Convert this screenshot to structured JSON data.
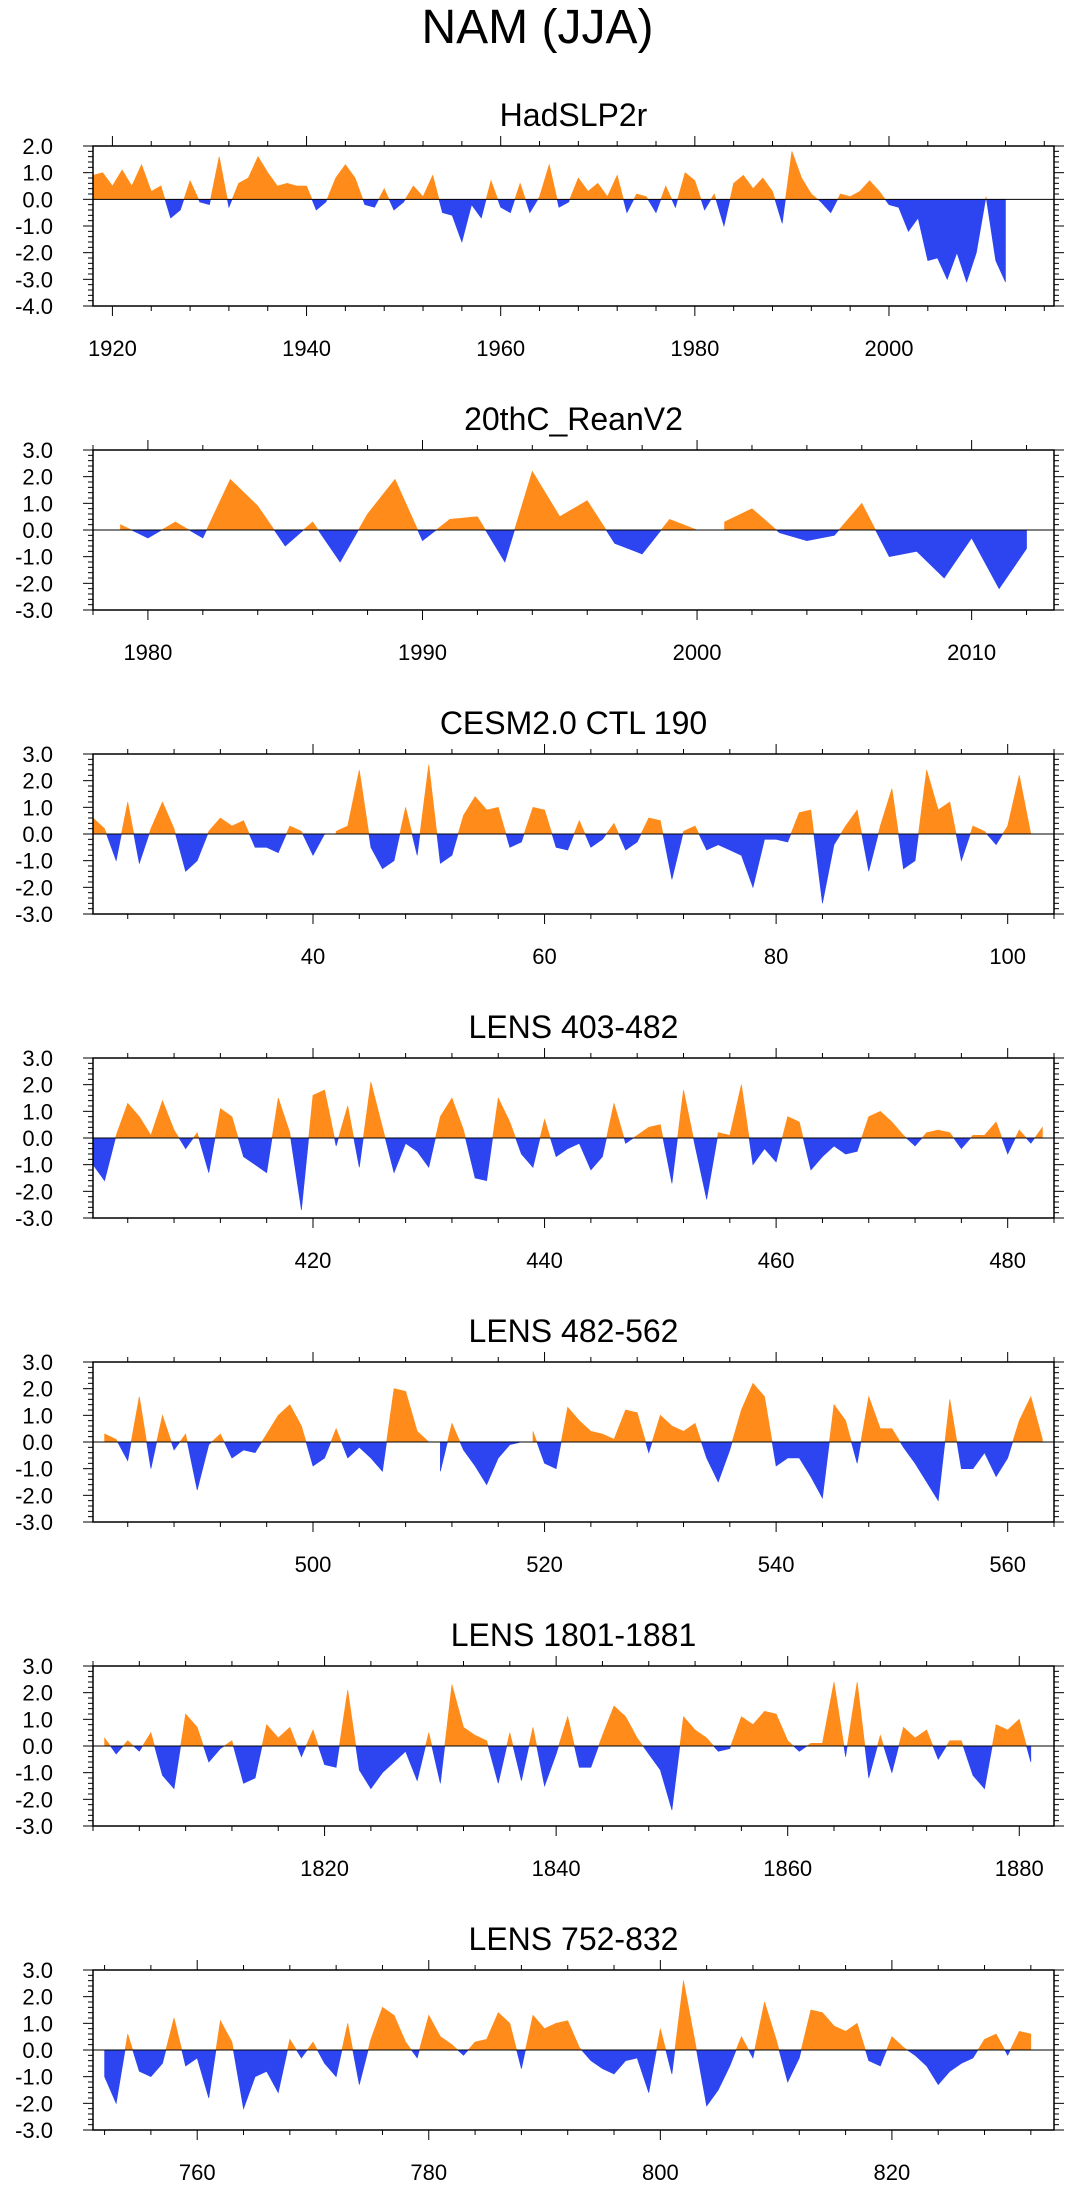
{
  "title": "NAM (JJA)",
  "colors": {
    "positive": "#ff8c1a",
    "negative": "#2d45f0",
    "axis": "#000000",
    "zero_line": "#000000"
  },
  "chart_data": [
    {
      "type": "area",
      "title": "HadSLP2r",
      "xlim": [
        1918,
        2017
      ],
      "ylim": [
        -4.0,
        2.0
      ],
      "yticks": [
        2.0,
        1.0,
        0.0,
        -1.0,
        -2.0,
        -3.0,
        -4.0
      ],
      "ytick_labels": [
        "2.0",
        "1.0",
        "0.0",
        "-1.0",
        "-2.0",
        "-3.0",
        "-4.0"
      ],
      "xticks": [
        1920,
        1940,
        1960,
        1980,
        2000
      ],
      "x_start": 1918,
      "x_step": 1,
      "values": [
        0.9,
        1.0,
        0.5,
        1.1,
        0.5,
        1.3,
        0.3,
        0.5,
        -0.7,
        -0.4,
        0.7,
        -0.1,
        -0.2,
        1.6,
        -0.3,
        0.6,
        0.8,
        1.6,
        1.0,
        0.5,
        0.6,
        0.5,
        0.5,
        -0.4,
        -0.1,
        0.8,
        1.3,
        0.8,
        -0.2,
        -0.3,
        0.4,
        -0.4,
        -0.1,
        0.5,
        0.1,
        0.9,
        -0.5,
        -0.6,
        -1.6,
        -0.2,
        -0.7,
        0.7,
        -0.3,
        -0.5,
        0.6,
        -0.5,
        0.1,
        1.3,
        -0.3,
        -0.1,
        0.8,
        0.3,
        0.6,
        0.1,
        0.9,
        -0.5,
        0.2,
        0.1,
        -0.5,
        0.5,
        -0.3,
        1.0,
        0.7,
        -0.4,
        0.2,
        -1.0,
        0.6,
        0.9,
        0.4,
        0.8,
        0.3,
        -0.9,
        1.8,
        0.8,
        0.2,
        -0.1,
        -0.5,
        0.2,
        0.1,
        0.3,
        0.7,
        0.3,
        -0.2,
        -0.3,
        -1.2,
        -0.7,
        -2.3,
        -2.2,
        -3.0,
        -2.0,
        -3.1,
        -2.0,
        0.1,
        -2.3,
        -3.1
      ]
    },
    {
      "type": "area",
      "title": "20thC_ReanV2",
      "xlim": [
        1978,
        2013
      ],
      "ylim": [
        -3.0,
        3.0
      ],
      "yticks": [
        3.0,
        2.0,
        1.0,
        0.0,
        -1.0,
        -2.0,
        -3.0
      ],
      "ytick_labels": [
        "3.0",
        "2.0",
        "1.0",
        "0.0",
        "-1.0",
        "-2.0",
        "-3.0"
      ],
      "xticks": [
        1980,
        1990,
        2000,
        2010
      ],
      "x_start": 1979,
      "x_step": 1,
      "values": [
        0.2,
        -0.3,
        0.3,
        -0.3,
        1.9,
        0.9,
        -0.6,
        0.3,
        -1.2,
        0.6,
        1.9,
        -0.4,
        0.4,
        0.5,
        -1.2,
        2.2,
        0.5,
        1.1,
        -0.5,
        -0.9,
        0.4,
        0.0,
        0.3,
        0.8,
        -0.1,
        -0.4,
        -0.2,
        1.0,
        -1.0,
        -0.8,
        -1.8,
        -0.3,
        -2.2,
        -0.7
      ]
    },
    {
      "type": "area",
      "title": "CESM2.0 CTL 190",
      "xlim": [
        21,
        104
      ],
      "ylim": [
        -3.0,
        3.0
      ],
      "yticks": [
        3.0,
        2.0,
        1.0,
        0.0,
        -1.0,
        -2.0,
        -3.0
      ],
      "ytick_labels": [
        "3.0",
        "2.0",
        "1.0",
        "0.0",
        "-1.0",
        "-2.0",
        "-3.0"
      ],
      "xticks": [
        40,
        60,
        80,
        100
      ],
      "x_start": 21,
      "x_step": 1,
      "values": [
        0.6,
        0.2,
        -1.0,
        1.2,
        -1.1,
        0.2,
        1.2,
        0.2,
        -1.4,
        -1.0,
        0.1,
        0.6,
        0.3,
        0.5,
        -0.5,
        -0.5,
        -0.7,
        0.3,
        0.1,
        -0.8,
        0.0,
        0.1,
        0.3,
        2.4,
        -0.5,
        -1.3,
        -1.0,
        1.0,
        -0.8,
        2.6,
        -1.1,
        -0.8,
        0.7,
        1.4,
        0.9,
        1.0,
        -0.5,
        -0.3,
        1.0,
        0.9,
        -0.5,
        -0.6,
        0.5,
        -0.5,
        -0.2,
        0.4,
        -0.6,
        -0.3,
        0.6,
        0.5,
        -1.7,
        0.1,
        0.3,
        -0.6,
        -0.4,
        -0.6,
        -0.8,
        -2.0,
        -0.2,
        -0.2,
        -0.3,
        0.8,
        0.9,
        -2.6,
        -0.4,
        0.3,
        0.9,
        -1.4,
        0.3,
        1.7,
        -1.3,
        -1.0,
        2.4,
        0.9,
        1.2,
        -1.0,
        0.3,
        0.1,
        -0.4,
        0.3,
        2.2,
        0.0
      ]
    },
    {
      "type": "area",
      "title": "LENS 403-482",
      "xlim": [
        401,
        484
      ],
      "ylim": [
        -3.0,
        3.0
      ],
      "yticks": [
        3.0,
        2.0,
        1.0,
        0.0,
        -1.0,
        -2.0,
        -3.0
      ],
      "ytick_labels": [
        "3.0",
        "2.0",
        "1.0",
        "0.0",
        "-1.0",
        "-2.0",
        "-3.0"
      ],
      "xticks": [
        420,
        440,
        460,
        480
      ],
      "x_start": 401,
      "x_step": 1,
      "values": [
        -1.0,
        -1.6,
        0.1,
        1.3,
        0.8,
        0.1,
        1.4,
        0.3,
        -0.4,
        0.2,
        -1.3,
        1.1,
        0.8,
        -0.7,
        -1.0,
        -1.3,
        1.5,
        0.2,
        -2.7,
        1.6,
        1.8,
        -0.3,
        1.2,
        -1.1,
        2.1,
        0.4,
        -1.3,
        -0.2,
        -0.5,
        -1.1,
        0.8,
        1.5,
        0.3,
        -1.5,
        -1.6,
        1.5,
        0.6,
        -0.6,
        -1.1,
        0.7,
        -0.7,
        -0.4,
        -0.2,
        -1.2,
        -0.7,
        1.3,
        -0.2,
        0.1,
        0.4,
        0.5,
        -1.7,
        1.8,
        -0.3,
        -2.3,
        0.2,
        0.1,
        2.0,
        -1.0,
        -0.4,
        -0.9,
        0.8,
        0.6,
        -1.2,
        -0.7,
        -0.3,
        -0.6,
        -0.5,
        0.8,
        1.0,
        0.6,
        0.1,
        -0.3,
        0.2,
        0.3,
        0.2,
        -0.4,
        0.1,
        0.1,
        0.6,
        -0.6,
        0.3,
        -0.2,
        0.4
      ]
    },
    {
      "type": "area",
      "title": "LENS 482-562",
      "xlim": [
        481,
        564
      ],
      "ylim": [
        -3.0,
        3.0
      ],
      "yticks": [
        3.0,
        2.0,
        1.0,
        0.0,
        -1.0,
        -2.0,
        -3.0
      ],
      "ytick_labels": [
        "3.0",
        "2.0",
        "1.0",
        "0.0",
        "-1.0",
        "-2.0",
        "-3.0"
      ],
      "xticks": [
        500,
        520,
        540,
        560
      ],
      "x_start": 482,
      "x_step": 1,
      "values": [
        0.3,
        0.1,
        -0.7,
        1.7,
        -1.0,
        1.0,
        -0.3,
        0.3,
        -1.8,
        -0.1,
        0.3,
        -0.6,
        -0.3,
        -0.4,
        0.3,
        1.0,
        1.4,
        0.6,
        -0.9,
        -0.6,
        0.5,
        -0.6,
        -0.2,
        -0.6,
        -1.1,
        2.0,
        1.9,
        0.4,
        0.0,
        -1.1,
        0.7,
        -0.3,
        -0.9,
        -1.6,
        -0.6,
        -0.1,
        0.0,
        0.4,
        -0.8,
        -1.0,
        1.3,
        0.8,
        0.4,
        0.3,
        0.1,
        1.2,
        1.1,
        -0.4,
        1.0,
        0.6,
        0.4,
        0.7,
        -0.6,
        -1.5,
        -0.3,
        1.2,
        2.2,
        1.7,
        -0.9,
        -0.6,
        -0.6,
        -1.3,
        -2.1,
        1.4,
        0.8,
        -0.8,
        1.7,
        0.5,
        0.5,
        -0.2,
        -0.8,
        -1.5,
        -2.2,
        1.6,
        -1.0,
        -1.0,
        -0.4,
        -1.3,
        -0.6,
        0.8,
        1.7,
        0.1
      ]
    },
    {
      "type": "area",
      "title": "LENS 1801-1881",
      "xlim": [
        1800,
        1883
      ],
      "ylim": [
        -3.0,
        3.0
      ],
      "yticks": [
        3.0,
        2.0,
        1.0,
        0.0,
        -1.0,
        -2.0,
        -3.0
      ],
      "ytick_labels": [
        "3.0",
        "2.0",
        "1.0",
        "0.0",
        "-1.0",
        "-2.0",
        "-3.0"
      ],
      "xticks": [
        1820,
        1840,
        1860,
        1880
      ],
      "x_start": 1801,
      "x_step": 1,
      "values": [
        0.3,
        -0.3,
        0.2,
        -0.2,
        0.5,
        -1.1,
        -1.6,
        1.2,
        0.7,
        -0.6,
        -0.1,
        0.2,
        -1.4,
        -1.2,
        0.8,
        0.3,
        0.7,
        -0.4,
        0.6,
        -0.7,
        -0.8,
        2.1,
        -0.9,
        -1.6,
        -1.0,
        -0.6,
        -0.2,
        -1.3,
        0.5,
        -1.4,
        2.3,
        0.7,
        0.4,
        0.2,
        -1.4,
        0.5,
        -1.3,
        0.7,
        -1.5,
        -0.3,
        1.1,
        -0.8,
        -0.8,
        0.4,
        1.5,
        1.1,
        0.3,
        -0.3,
        -0.9,
        -2.4,
        1.1,
        0.6,
        0.3,
        -0.2,
        -0.1,
        1.1,
        0.8,
        1.3,
        1.2,
        0.2,
        -0.2,
        0.1,
        0.1,
        2.4,
        -0.4,
        2.4,
        -1.2,
        0.4,
        -1.0,
        0.7,
        0.3,
        0.6,
        -0.5,
        0.2,
        0.2,
        -1.1,
        -1.6,
        0.8,
        0.6,
        1.0,
        -0.6
      ]
    },
    {
      "type": "area",
      "title": "LENS 752-832",
      "xlim": [
        751,
        834
      ],
      "ylim": [
        -3.0,
        3.0
      ],
      "yticks": [
        3.0,
        2.0,
        1.0,
        0.0,
        -1.0,
        -2.0,
        -3.0
      ],
      "ytick_labels": [
        "3.0",
        "2.0",
        "1.0",
        "0.0",
        "-1.0",
        "-2.0",
        "-3.0"
      ],
      "xticks": [
        760,
        780,
        800,
        820
      ],
      "x_start": 752,
      "x_step": 1,
      "values": [
        -1.0,
        -2.0,
        0.6,
        -0.8,
        -1.0,
        -0.5,
        1.2,
        -0.6,
        -0.3,
        -1.8,
        1.1,
        0.3,
        -2.2,
        -1.0,
        -0.8,
        -1.6,
        0.4,
        -0.3,
        0.3,
        -0.5,
        -1.0,
        1.0,
        -1.3,
        0.4,
        1.6,
        1.3,
        0.3,
        -0.3,
        1.3,
        0.5,
        0.2,
        -0.2,
        0.3,
        0.4,
        1.4,
        1.0,
        -0.7,
        1.3,
        0.8,
        1.0,
        1.1,
        0.1,
        -0.4,
        -0.7,
        -0.9,
        -0.4,
        -0.3,
        -1.6,
        0.8,
        -0.9,
        2.6,
        0.3,
        -2.1,
        -1.5,
        -0.6,
        0.5,
        -0.3,
        1.8,
        0.4,
        -1.2,
        -0.3,
        1.5,
        1.4,
        0.9,
        0.7,
        1.0,
        -0.4,
        -0.6,
        0.5,
        0.1,
        -0.2,
        -0.6,
        -1.3,
        -0.8,
        -0.5,
        -0.3,
        0.4,
        0.6,
        -0.2,
        0.7,
        0.6
      ]
    }
  ]
}
